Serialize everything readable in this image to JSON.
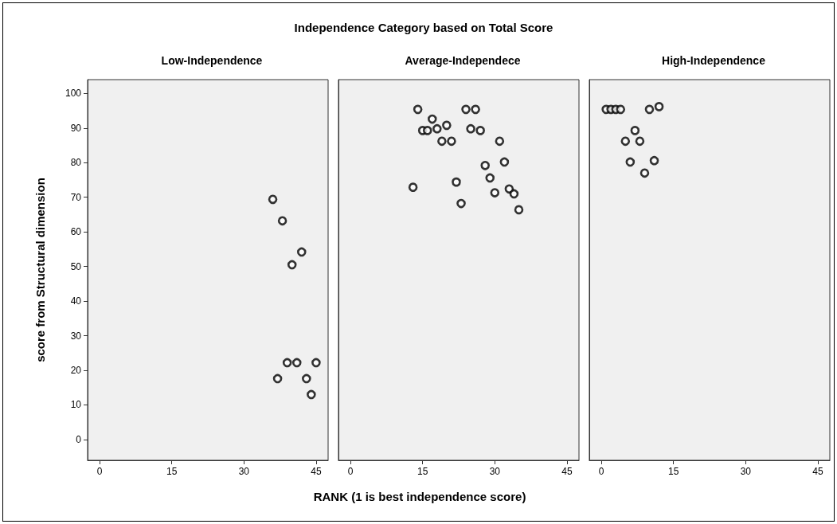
{
  "chart_data": [
    {
      "type": "scatter",
      "subtitle": "Low-Independence",
      "ylabel": "score from Structural dimension",
      "xlim": [
        -2.5,
        47.5
      ],
      "xticks": [
        0,
        15,
        30,
        45
      ],
      "ylim": [
        -6,
        104
      ],
      "yticks": [
        0,
        10,
        20,
        30,
        40,
        50,
        60,
        70,
        80,
        90,
        100
      ],
      "marker": "circle",
      "color": "#000000",
      "x": [
        36,
        38,
        42,
        40,
        39,
        41,
        45,
        37,
        43,
        44
      ],
      "values": [
        69.4,
        63.2,
        54.2,
        50.5,
        22.2,
        22.2,
        22.2,
        17.6,
        17.6,
        13.0
      ]
    },
    {
      "type": "scatter",
      "title": "Independence Category based on Total Score",
      "subtitle": "Average-Independece",
      "xlabel": "RANK (1 is best independence score)",
      "xlim": [
        -2.5,
        47.5
      ],
      "xticks": [
        0,
        15,
        30,
        45
      ],
      "ylim": [
        -6,
        104
      ],
      "tick_labels": "x",
      "marker": "circle",
      "color": "#000000",
      "x": [
        14,
        17,
        15,
        16,
        18,
        20,
        19,
        21,
        24,
        26,
        25,
        27,
        31,
        32,
        28,
        29,
        22,
        13,
        33,
        30,
        34,
        23,
        35
      ],
      "values": [
        95.4,
        92.6,
        89.3,
        89.3,
        89.8,
        90.8,
        86.2,
        86.2,
        95.4,
        95.4,
        89.8,
        89.3,
        86.2,
        80.2,
        79.2,
        75.6,
        74.4,
        72.9,
        72.4,
        71.3,
        71.0,
        68.2,
        66.4
      ]
    },
    {
      "type": "scatter",
      "subtitle": "High-Independence",
      "xlim": [
        -2.5,
        47.5
      ],
      "xticks": [
        0,
        15,
        30,
        45
      ],
      "ylim": [
        -6,
        104
      ],
      "tick_labels": "x",
      "marker": "circle",
      "color": "#000000",
      "x": [
        1,
        2,
        3,
        4,
        10,
        12,
        7,
        5,
        8,
        6,
        11,
        9
      ],
      "values": [
        95.4,
        95.4,
        95.4,
        95.4,
        95.4,
        96.2,
        89.3,
        86.2,
        86.2,
        80.2,
        80.6,
        77.0
      ]
    }
  ]
}
